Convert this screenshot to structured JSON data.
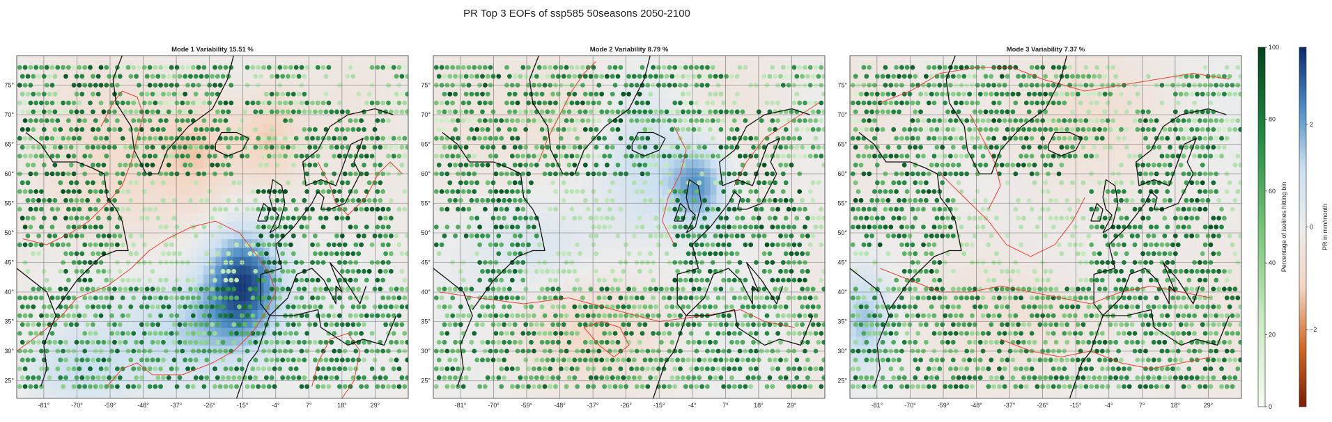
{
  "figure": {
    "title": "PR Top 3 EOFs of ssp585 50seasons 2050-2100"
  },
  "chart_data": [
    {
      "type": "heatmap",
      "title": "Mode 1 Variability 15.51 %",
      "lon_range": [
        -90,
        40
      ],
      "lat_range": [
        22,
        80
      ],
      "lon_ticks": [
        -81,
        -70,
        -59,
        -48,
        -37,
        -26,
        -15,
        -4,
        7,
        18,
        29
      ],
      "lat_ticks": [
        25,
        30,
        35,
        40,
        45,
        50,
        55,
        60,
        65,
        70,
        75
      ],
      "pattern": [
        {
          "lon": -15,
          "lat": 42,
          "sx": 13,
          "sy": 9,
          "amp": -3.2
        },
        {
          "lon": -30,
          "lat": 33,
          "sx": 25,
          "sy": 9,
          "amp": -1.6
        },
        {
          "lon": -70,
          "lat": 27,
          "sx": 18,
          "sy": 6,
          "amp": -1.0
        },
        {
          "lon": -30,
          "lat": 64,
          "sx": 16,
          "sy": 10,
          "amp": 1.3
        },
        {
          "lon": -6,
          "lat": 66,
          "sx": 10,
          "sy": 8,
          "amp": 1.1
        },
        {
          "lon": -60,
          "lat": 60,
          "sx": 22,
          "sy": 14,
          "amp": 0.5
        }
      ]
    },
    {
      "type": "heatmap",
      "title": "Mode 2 Variability 8.79 %",
      "lon_range": [
        -90,
        40
      ],
      "lat_range": [
        22,
        80
      ],
      "lon_ticks": [
        -81,
        -70,
        -59,
        -48,
        -37,
        -26,
        -15,
        -4,
        7,
        18,
        29
      ],
      "lat_ticks": [
        25,
        30,
        35,
        40,
        45,
        50,
        55,
        60,
        65,
        70,
        75
      ],
      "pattern": [
        {
          "lon": -2,
          "lat": 58,
          "sx": 10,
          "sy": 7,
          "amp": -2.3
        },
        {
          "lon": -20,
          "lat": 62,
          "sx": 14,
          "sy": 12,
          "amp": -1.1
        },
        {
          "lon": -55,
          "lat": 48,
          "sx": 24,
          "sy": 8,
          "amp": -0.7
        },
        {
          "lon": -45,
          "lat": 70,
          "sx": 20,
          "sy": 10,
          "amp": 0.6
        },
        {
          "lon": -40,
          "lat": 33,
          "sx": 28,
          "sy": 7,
          "amp": 0.6
        }
      ]
    },
    {
      "type": "heatmap",
      "title": "Mode 3 Variability 7.37 %",
      "lon_range": [
        -90,
        40
      ],
      "lat_range": [
        22,
        80
      ],
      "lon_ticks": [
        -81,
        -70,
        -59,
        -48,
        -37,
        -26,
        -15,
        -4,
        7,
        18,
        29
      ],
      "lat_ticks": [
        25,
        30,
        35,
        40,
        45,
        50,
        55,
        60,
        65,
        70,
        75
      ],
      "pattern": [
        {
          "lon": -85,
          "lat": 35,
          "sx": 8,
          "sy": 8,
          "amp": -1.5
        },
        {
          "lon": -30,
          "lat": 70,
          "sx": 40,
          "sy": 10,
          "amp": 0.4
        },
        {
          "lon": -20,
          "lat": 35,
          "sx": 25,
          "sy": 8,
          "amp": 0.5
        }
      ]
    }
  ],
  "colorbars": [
    {
      "name": "isoline",
      "label": "Percentage of isolines hitting bin",
      "range": [
        0,
        100
      ],
      "ticks": [
        0,
        20,
        40,
        60,
        80,
        100
      ],
      "colors": [
        "#f4fbee",
        "#c7e9c0",
        "#74c476",
        "#238b45",
        "#00441b"
      ]
    },
    {
      "name": "pr",
      "label": "PR in mm/month",
      "range": [
        -3.5,
        3.5
      ],
      "ticks": [
        -2,
        0,
        2
      ],
      "colors": [
        "#7f1d05",
        "#d26a25",
        "#f4d6c3",
        "#ececec",
        "#c9dff0",
        "#4a8cc4",
        "#0c2a6b"
      ]
    }
  ],
  "colors": {
    "coastline": "#111111",
    "contour": "#e8412f",
    "grid": "#555555"
  }
}
